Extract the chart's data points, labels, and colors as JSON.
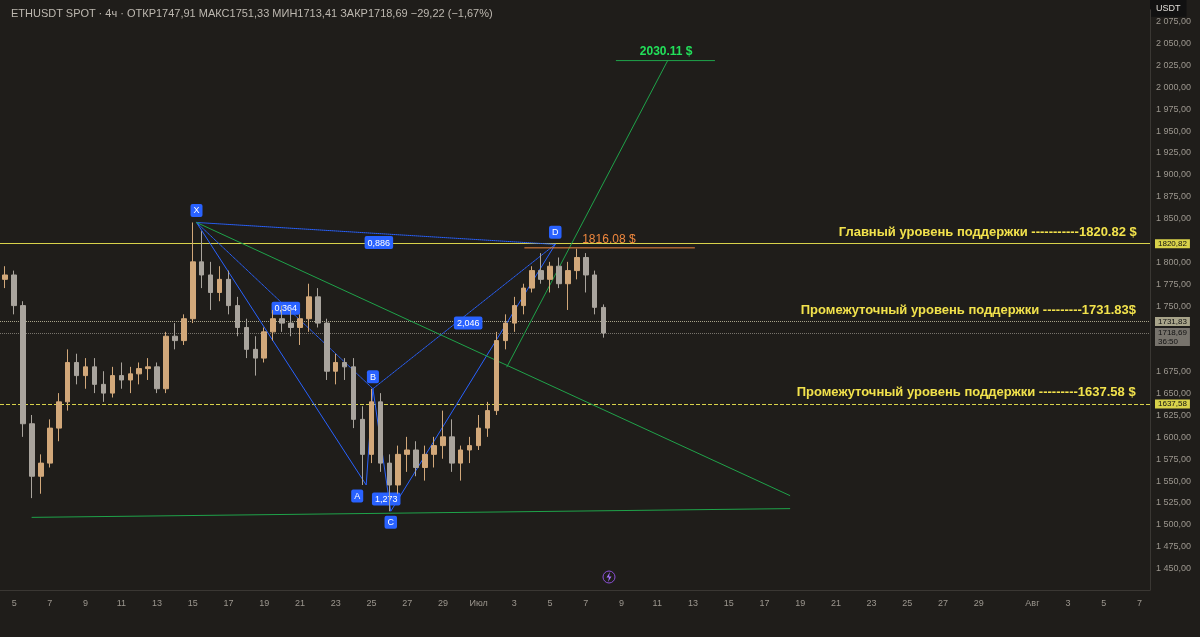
{
  "chart_data": {
    "type": "candlestick",
    "title": "ETHUSDT SPOT · 4ч · ОТКР1747,91 МАКС1751,33 МИН1713,41 ЗАКР1718,69 −29,22 (−1,67%)",
    "ylabel": "USDT",
    "xlim": [
      "--06-04T05:00",
      "--08-07T14:00"
    ],
    "xticks": [
      {
        "value": "--06-05",
        "label": "5"
      },
      {
        "value": "--06-07",
        "label": "7"
      },
      {
        "value": "--06-09",
        "label": "9"
      },
      {
        "value": "--06-11",
        "label": "11"
      },
      {
        "value": "--06-13",
        "label": "13"
      },
      {
        "value": "--06-15",
        "label": "15"
      },
      {
        "value": "--06-17",
        "label": "17"
      },
      {
        "value": "--06-19",
        "label": "19"
      },
      {
        "value": "--06-21",
        "label": "21"
      },
      {
        "value": "--06-23",
        "label": "23"
      },
      {
        "value": "--06-25",
        "label": "25"
      },
      {
        "value": "--06-27",
        "label": "27"
      },
      {
        "value": "--06-29",
        "label": "29"
      },
      {
        "value": "--07-01",
        "label": "Июл"
      },
      {
        "value": "--07-03",
        "label": "3"
      },
      {
        "value": "--07-05",
        "label": "5"
      },
      {
        "value": "--07-07",
        "label": "7"
      },
      {
        "value": "--07-09",
        "label": "9"
      },
      {
        "value": "--07-11",
        "label": "11"
      },
      {
        "value": "--07-13",
        "label": "13"
      },
      {
        "value": "--07-15",
        "label": "15"
      },
      {
        "value": "--07-17",
        "label": "17"
      },
      {
        "value": "--07-19",
        "label": "19"
      },
      {
        "value": "--07-21",
        "label": "21"
      },
      {
        "value": "--07-23",
        "label": "23"
      },
      {
        "value": "--07-25",
        "label": "25"
      },
      {
        "value": "--07-27",
        "label": "27"
      },
      {
        "value": "--07-29",
        "label": "29"
      },
      {
        "value": "--08-01",
        "label": "Авг"
      },
      {
        "value": "--08-03",
        "label": "3"
      },
      {
        "value": "--08-05",
        "label": "5"
      },
      {
        "value": "--08-07",
        "label": "7"
      }
    ],
    "ylim": [
      1425,
      2088
    ],
    "yticks": [
      {
        "value": 1450,
        "label": "1 450,00"
      },
      {
        "value": 1475,
        "label": "1 475,00"
      },
      {
        "value": 1500,
        "label": "1 500,00"
      },
      {
        "value": 1525,
        "label": "1 525,00"
      },
      {
        "value": 1550,
        "label": "1 550,00"
      },
      {
        "value": 1575,
        "label": "1 575,00"
      },
      {
        "value": 1600,
        "label": "1 600,00"
      },
      {
        "value": 1625,
        "label": "1 625,00"
      },
      {
        "value": 1650,
        "label": "1 650,00"
      },
      {
        "value": 1675,
        "label": "1 675,00"
      },
      {
        "value": 1750,
        "label": "1 750,00"
      },
      {
        "value": 1775,
        "label": "1 775,00"
      },
      {
        "value": 1800,
        "label": "1 800,00"
      },
      {
        "value": 1850,
        "label": "1 850,00"
      },
      {
        "value": 1875,
        "label": "1 875,00"
      },
      {
        "value": 1900,
        "label": "1 900,00"
      },
      {
        "value": 1925,
        "label": "1 925,00"
      },
      {
        "value": 1950,
        "label": "1 950,00"
      },
      {
        "value": 1975,
        "label": "1 975,00"
      },
      {
        "value": 2000,
        "label": "2 000,00"
      },
      {
        "value": 2025,
        "label": "2 025,00"
      },
      {
        "value": 2050,
        "label": "2 050,00"
      },
      {
        "value": 2075,
        "label": "2 075,00"
      }
    ],
    "grid": false,
    "marker": "none",
    "series": [
      {
        "x": [
          "--06-04T12:00",
          "--06-05T00:00",
          "--06-05T12:00",
          "--06-06T00:00",
          "--06-06T12:00",
          "--06-07T00:00",
          "--06-07T12:00",
          "--06-08T00:00",
          "--06-08T12:00",
          "--06-09T00:00",
          "--06-09T12:00",
          "--06-10T00:00",
          "--06-10T12:00",
          "--06-11T00:00",
          "--06-11T12:00",
          "--06-12T00:00",
          "--06-12T12:00",
          "--06-13T00:00",
          "--06-13T12:00",
          "--06-14T00:00",
          "--06-14T12:00",
          "--06-15T00:00",
          "--06-15T12:00",
          "--06-16T00:00",
          "--06-16T12:00",
          "--06-17T00:00",
          "--06-17T12:00",
          "--06-18T00:00",
          "--06-18T12:00",
          "--06-19T00:00",
          "--06-19T12:00",
          "--06-20T00:00",
          "--06-20T12:00",
          "--06-21T00:00",
          "--06-21T12:00",
          "--06-22T00:00",
          "--06-22T12:00",
          "--06-23T00:00",
          "--06-23T12:00",
          "--06-24T00:00",
          "--06-24T12:00",
          "--06-25T00:00",
          "--06-25T12:00",
          "--06-26T00:00",
          "--06-26T12:00",
          "--06-27T00:00",
          "--06-27T12:00",
          "--06-28T00:00",
          "--06-28T12:00",
          "--06-29T00:00",
          "--06-29T12:00",
          "--06-30T00:00",
          "--06-30T12:00",
          "--07-01T00:00",
          "--07-01T12:00",
          "--07-02T00:00",
          "--07-02T12:00",
          "--07-03T00:00",
          "--07-03T12:00",
          "--07-04T00:00",
          "--07-04T12:00",
          "--07-05T00:00",
          "--07-05T12:00",
          "--07-06T00:00",
          "--07-06T12:00",
          "--07-07T00:00",
          "--07-07T12:00",
          "--07-08T00:00"
        ],
        "ohlc": [
          [
            1780,
            1795,
            1770,
            1785
          ],
          [
            1785,
            1790,
            1740,
            1750
          ],
          [
            1750,
            1755,
            1600,
            1615
          ],
          [
            1615,
            1625,
            1530,
            1555
          ],
          [
            1555,
            1580,
            1535,
            1570
          ],
          [
            1570,
            1620,
            1565,
            1610
          ],
          [
            1610,
            1650,
            1595,
            1640
          ],
          [
            1640,
            1700,
            1630,
            1685
          ],
          [
            1685,
            1695,
            1660,
            1670
          ],
          [
            1670,
            1690,
            1655,
            1680
          ],
          [
            1680,
            1690,
            1650,
            1660
          ],
          [
            1660,
            1675,
            1640,
            1650
          ],
          [
            1650,
            1680,
            1645,
            1670
          ],
          [
            1670,
            1685,
            1655,
            1665
          ],
          [
            1665,
            1680,
            1650,
            1672
          ],
          [
            1672,
            1685,
            1660,
            1678
          ],
          [
            1678,
            1690,
            1665,
            1680
          ],
          [
            1680,
            1685,
            1650,
            1655
          ],
          [
            1655,
            1720,
            1650,
            1715
          ],
          [
            1715,
            1730,
            1700,
            1710
          ],
          [
            1710,
            1740,
            1705,
            1735
          ],
          [
            1735,
            1845,
            1730,
            1800
          ],
          [
            1800,
            1835,
            1770,
            1785
          ],
          [
            1785,
            1800,
            1745,
            1765
          ],
          [
            1765,
            1795,
            1755,
            1780
          ],
          [
            1780,
            1790,
            1740,
            1750
          ],
          [
            1750,
            1760,
            1715,
            1725
          ],
          [
            1725,
            1735,
            1690,
            1700
          ],
          [
            1700,
            1715,
            1670,
            1690
          ],
          [
            1690,
            1725,
            1685,
            1720
          ],
          [
            1720,
            1745,
            1710,
            1735
          ],
          [
            1735,
            1750,
            1720,
            1730
          ],
          [
            1730,
            1745,
            1715,
            1725
          ],
          [
            1725,
            1740,
            1705,
            1735
          ],
          [
            1735,
            1775,
            1720,
            1760
          ],
          [
            1760,
            1770,
            1725,
            1730
          ],
          [
            1730,
            1735,
            1665,
            1675
          ],
          [
            1675,
            1695,
            1660,
            1685
          ],
          [
            1685,
            1690,
            1665,
            1680
          ],
          [
            1680,
            1690,
            1610,
            1620
          ],
          [
            1620,
            1635,
            1545,
            1580
          ],
          [
            1580,
            1655,
            1570,
            1640
          ],
          [
            1640,
            1650,
            1560,
            1570
          ],
          [
            1570,
            1580,
            1515,
            1545
          ],
          [
            1545,
            1590,
            1535,
            1580
          ],
          [
            1580,
            1600,
            1560,
            1585
          ],
          [
            1585,
            1595,
            1555,
            1565
          ],
          [
            1565,
            1590,
            1550,
            1580
          ],
          [
            1580,
            1600,
            1565,
            1590
          ],
          [
            1590,
            1630,
            1575,
            1600
          ],
          [
            1600,
            1620,
            1560,
            1570
          ],
          [
            1570,
            1590,
            1550,
            1585
          ],
          [
            1585,
            1600,
            1570,
            1590
          ],
          [
            1590,
            1625,
            1585,
            1610
          ],
          [
            1610,
            1640,
            1600,
            1630
          ],
          [
            1630,
            1720,
            1625,
            1710
          ],
          [
            1710,
            1740,
            1700,
            1730
          ],
          [
            1730,
            1760,
            1720,
            1750
          ],
          [
            1750,
            1775,
            1740,
            1770
          ],
          [
            1770,
            1795,
            1765,
            1790
          ],
          [
            1790,
            1810,
            1775,
            1780
          ],
          [
            1780,
            1800,
            1765,
            1795
          ],
          [
            1795,
            1805,
            1770,
            1775
          ],
          [
            1775,
            1800,
            1745,
            1790
          ],
          [
            1790,
            1815,
            1780,
            1805
          ],
          [
            1805,
            1810,
            1765,
            1785
          ],
          [
            1785,
            1790,
            1740,
            1748
          ],
          [
            1747.91,
            1751.33,
            1713.41,
            1718.69
          ]
        ]
      },
      {
        "type": "line",
        "color": "#2962ff",
        "x": [
          "--06-15T05:00",
          "--06-24T17:00",
          "--06-25T02:00",
          "--06-26T02:00",
          "--07-05T07:00"
        ],
        "values": [
          1845,
          1545,
          1655,
          1515,
          1820
        ]
      },
      {
        "type": "line",
        "color": "#2962ff",
        "line_style": "dotted",
        "x": [
          "--06-15T05:00",
          "--07-05T07:00"
        ],
        "values": [
          1845,
          1820
        ]
      },
      {
        "type": "line",
        "color": "#2962ff",
        "line_style": "dotted",
        "x": [
          "--06-15T05:00",
          "--06-25T02:00"
        ],
        "values": [
          1845,
          1655
        ]
      },
      {
        "type": "line",
        "color": "#2962ff",
        "line_style": "dotted",
        "x": [
          "--06-25T02:00",
          "--07-05T07:00"
        ],
        "values": [
          1655,
          1820
        ]
      },
      {
        "type": "line",
        "color": "#1fa34a",
        "x": [
          "--06-15T05:00",
          "--07-18T10:00"
        ],
        "values": [
          1845,
          1533
        ]
      },
      {
        "type": "line",
        "color": "#1fa34a",
        "x": [
          "--06-06T00:00",
          "--07-18T10:00"
        ],
        "values": [
          1508,
          1518
        ]
      },
      {
        "type": "line",
        "color": "#1fa34a",
        "x": [
          "--07-02T14:00",
          "--07-11T14:00"
        ],
        "values": [
          1680,
          2030
        ]
      },
      {
        "type": "line",
        "color": "#1fa34a",
        "x": [
          "--07-08T17:00",
          "--07-14T05:00"
        ],
        "values": [
          2030,
          2030
        ]
      },
      {
        "type": "line",
        "color": "#f0883e",
        "x": [
          "--07-03T14:00",
          "--07-13T02:00"
        ],
        "values": [
          1816,
          1816
        ]
      }
    ],
    "ref_lines": [
      {
        "axis": "y",
        "value": 1820.82,
        "label": "1820,82",
        "color": "#d8d24a",
        "line_style": "solid"
      },
      {
        "axis": "y",
        "value": 1731.83,
        "label": "1731,83",
        "color": "#a8a48a",
        "line_style": "dotted"
      },
      {
        "axis": "y",
        "value": 1718.69,
        "label": "1718,69\n36:50",
        "color": "#77736c",
        "line_style": "dotted"
      },
      {
        "axis": "y",
        "value": 1637.58,
        "label": "1637,58",
        "color": "#d8d24a",
        "line_style": "dashed"
      }
    ],
    "annotations": [
      {
        "text": "X",
        "x": "--06-15T05:00",
        "y": 1845
      },
      {
        "text": "A",
        "x": "--06-24T17:00",
        "y": 1545
      },
      {
        "text": "B",
        "x": "--06-25T02:00",
        "y": 1655
      },
      {
        "text": "C",
        "x": "--06-26T02:00",
        "y": 1515
      },
      {
        "text": "D",
        "x": "--07-05T07:00",
        "y": 1820
      },
      {
        "text": "0,886",
        "x": "--06-25T10:00",
        "y": 1822
      },
      {
        "text": "0,364",
        "x": "--06-20T05:00",
        "y": 1747
      },
      {
        "text": "1,273",
        "x": "--06-24T17:00",
        "y": 1545
      },
      {
        "text": "2,046",
        "x": "--06-30T10:00",
        "y": 1730
      },
      {
        "text": "1816.08 $",
        "x": "--07-08T07:00",
        "y": 1816.08
      },
      {
        "text": "2030.11 $",
        "x": "--07-11T12:00",
        "y": 2030.11
      },
      {
        "text": "Главный уровень поддержки -----------1820.82 $",
        "x": "--07-29T12:00",
        "y": 1820.82
      },
      {
        "text": "Промежуточный уровень поддержки ---------1731.83$",
        "x": "--07-28T10:00",
        "y": 1731.83
      },
      {
        "text": "Промежуточный уровень поддержки ---------1637.58 $",
        "x": "--07-28T07:00",
        "y": 1637.58
      }
    ]
  }
}
